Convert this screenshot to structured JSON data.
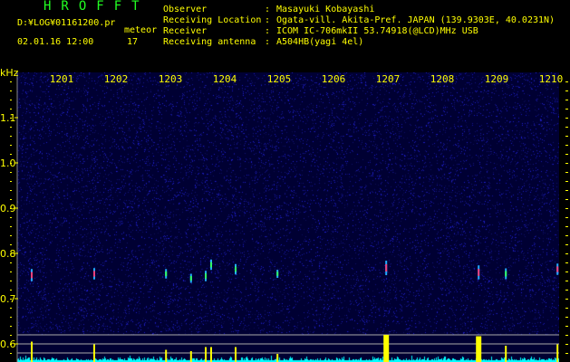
{
  "header": {
    "app_title": "HROFFT",
    "file_path": "D:¥LOG¥01161200.pr",
    "mode": "meteor",
    "datetime": "02.01.16 12:00",
    "count": "17",
    "info": [
      {
        "label": "Observer",
        "value": "Masayuki Kobayashi"
      },
      {
        "label": "Receiving Location",
        "value": "Ogata-vill. Akita-Pref. JAPAN (139.9303E, 40.0231N)"
      },
      {
        "label": "Receiver",
        "value": "ICOM IC-706mkII 53.74918(@LCD)MHz USB"
      },
      {
        "label": "Receiving antenna",
        "value": "A504HB(yagi 4el)"
      }
    ]
  },
  "chart_data": {
    "type": "heatmap",
    "ylabel": "kHz",
    "y_ticks": [
      "1.1",
      "1.0",
      "0.9",
      "0.8",
      "0.7",
      "0.6"
    ],
    "ylim": [
      0.56,
      1.2
    ],
    "x_ticks": [
      "1201",
      "1202",
      "1203",
      "1204",
      "1205",
      "1206",
      "1207",
      "1208",
      "1209",
      "1210"
    ],
    "colors": {
      "background": "#000033",
      "noise": "#1a1acc",
      "count_bar": "#ffff00",
      "noise_bar": "#00ffff",
      "grid": "#aaaaaa",
      "axis_text": "#ffff00",
      "title": "#22ff22"
    },
    "echoes": [
      {
        "minute": 0.45,
        "khz": 0.752,
        "strength": 0.75
      },
      {
        "minute": 1.6,
        "khz": 0.755,
        "strength": 0.65
      },
      {
        "minute": 2.92,
        "khz": 0.755,
        "strength": 0.45
      },
      {
        "minute": 3.38,
        "khz": 0.745,
        "strength": 0.4
      },
      {
        "minute": 3.65,
        "khz": 0.75,
        "strength": 0.55
      },
      {
        "minute": 3.75,
        "khz": 0.775,
        "strength": 0.55
      },
      {
        "minute": 4.2,
        "khz": 0.765,
        "strength": 0.55
      },
      {
        "minute": 4.97,
        "khz": 0.755,
        "strength": 0.3
      },
      {
        "minute": 6.97,
        "khz": 0.768,
        "strength": 1.0
      },
      {
        "minute": 8.67,
        "khz": 0.758,
        "strength": 0.95
      },
      {
        "minute": 9.17,
        "khz": 0.755,
        "strength": 0.6
      },
      {
        "minute": 10.12,
        "khz": 0.765,
        "strength": 0.65
      },
      {
        "minute": 10.72,
        "khz": 0.762,
        "strength": 1.0
      },
      {
        "minute": 10.97,
        "khz": 0.755,
        "strength": 0.8
      }
    ]
  }
}
